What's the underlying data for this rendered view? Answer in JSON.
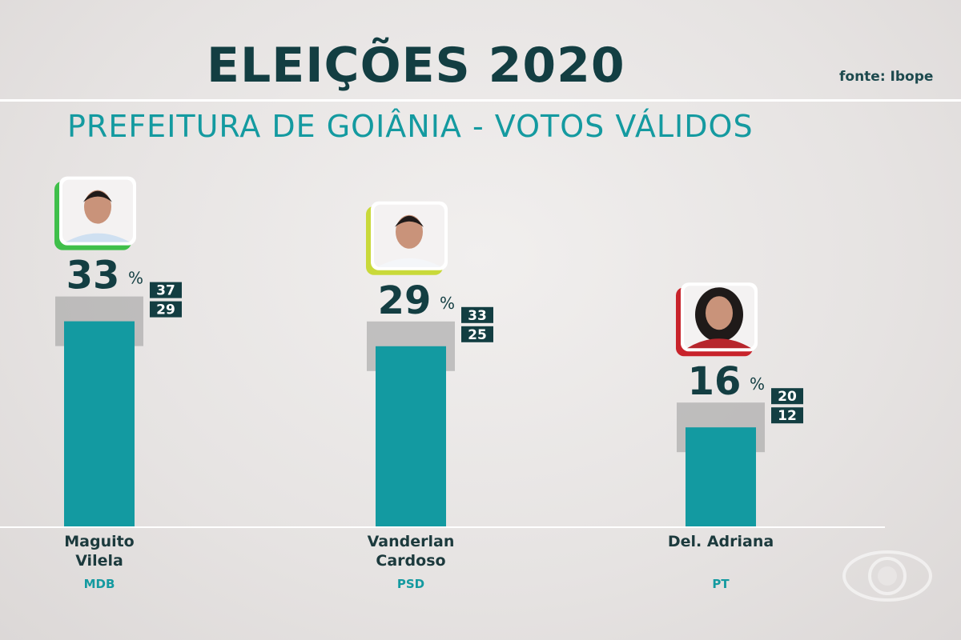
{
  "header": {
    "title": "ELEIÇÕES 2020",
    "source": "fonte: Ibope",
    "subtitle": "PREFEITURA DE GOIÂNIA - VOTOS VÁLIDOS"
  },
  "colors": {
    "bar": "#139aa1",
    "title": "#133e42",
    "subtitle": "#149aa0",
    "margin_band": "#9b9a9a"
  },
  "chart_data": {
    "type": "bar",
    "title": "PREFEITURA DE GOIÂNIA - VOTOS VÁLIDOS",
    "categories": [
      "Maguito Vilela",
      "Vanderlan Cardoso",
      "Del. Adriana"
    ],
    "values": [
      33,
      29,
      16
    ],
    "unit": "%",
    "percent_sign": "%",
    "ranges": [
      {
        "upper": 37,
        "lower": 29
      },
      {
        "upper": 33,
        "lower": 25
      },
      {
        "upper": 20,
        "lower": 12
      }
    ],
    "candidates": [
      {
        "name_line1": "Maguito",
        "name_line2": "Vilela",
        "party": "MDB",
        "accent": "#3fbf4a",
        "photo_icon": "man-portrait-photo"
      },
      {
        "name_line1": "Vanderlan",
        "name_line2": "Cardoso",
        "party": "PSD",
        "accent": "#c9d93a",
        "photo_icon": "man-portrait-photo"
      },
      {
        "name_line1": "Del. Adriana",
        "name_line2": "",
        "party": "PT",
        "accent": "#c8232b",
        "photo_icon": "woman-portrait-photo"
      }
    ],
    "xlabel": "",
    "ylabel": "",
    "ylim": [
      0,
      40
    ],
    "grid": false,
    "legend": "none"
  },
  "logo_icon": "globo-logo-icon"
}
